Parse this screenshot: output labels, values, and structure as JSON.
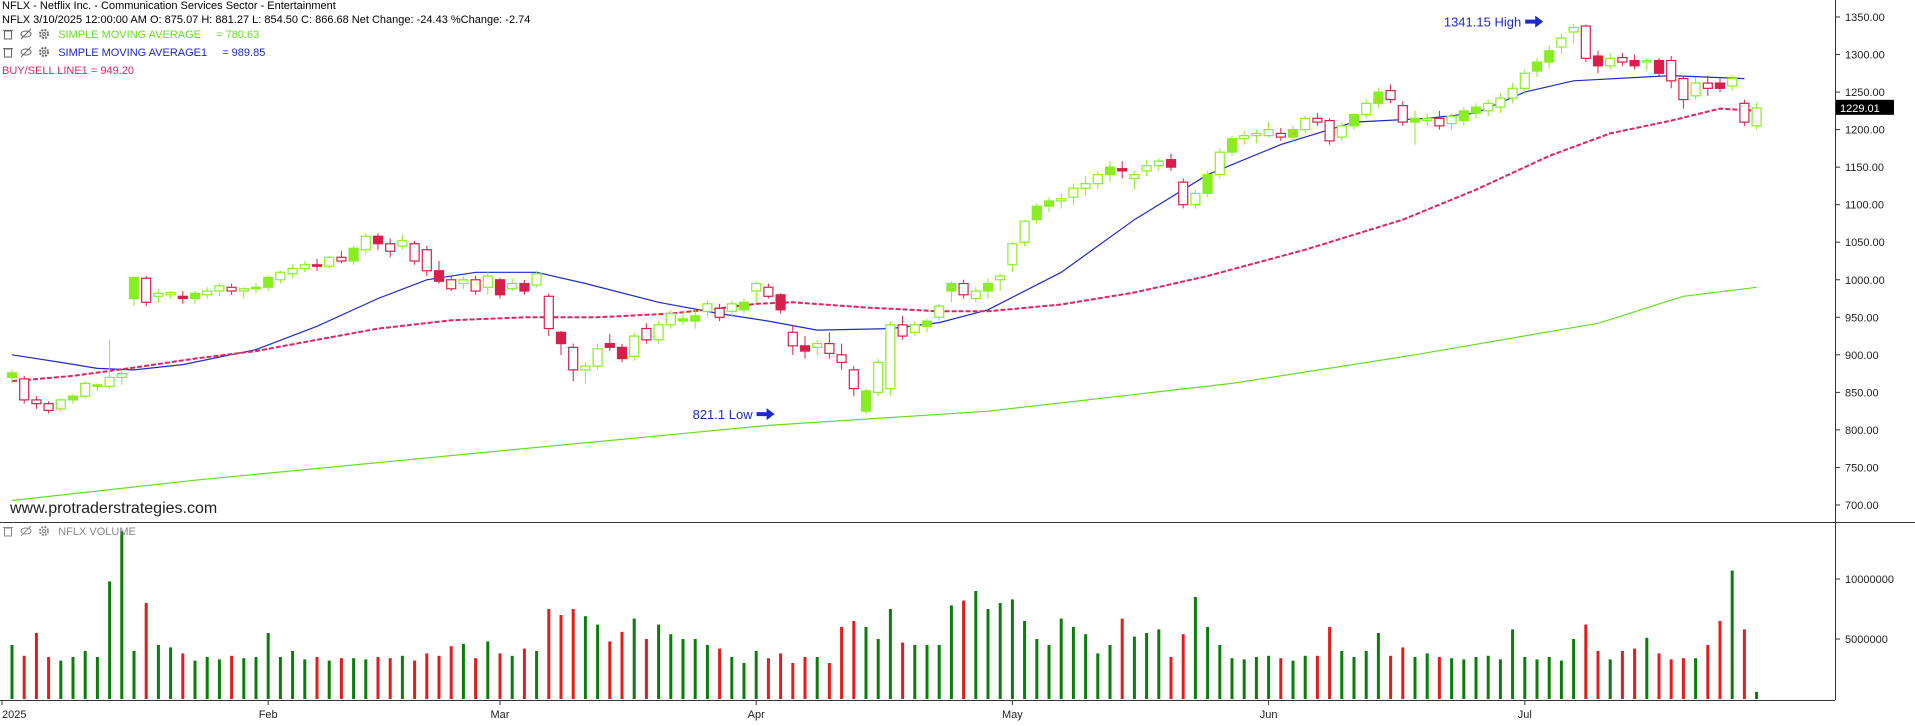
{
  "header": {
    "title": "NFLX - Netflix Inc. - Communication Services Sector - Entertainment",
    "ohlc": "NFLX 3/10/2025 12:00:00 AM O: 875.07 H: 881.27 L: 854.50 C: 866.68 Net Change: -24.43  %Change: -2.74"
  },
  "indicators": [
    {
      "label": "SIMPLE MOVING AVERAGE",
      "value": "= 780.63",
      "color": "#66dd22"
    },
    {
      "label": "SIMPLE MOVING AVERAGE1",
      "value": "= 989.85",
      "color": "#1f28c8"
    },
    {
      "label": "BUY/SELL LINE1 = 949.20",
      "value": "",
      "color": "#e0245e"
    }
  ],
  "watermark": "www.protraderstrategies.com",
  "volume_label": "NFLX VOLUME",
  "colors": {
    "up": "#88ee22",
    "down": "#d81e4a",
    "sma_long": "#66dd22",
    "sma_short": "#1f28c8",
    "buysell": "#e0245e",
    "vol_up": "#0a7d0a",
    "vol_down": "#e01e1e"
  },
  "chart_data": {
    "type": "candlestick",
    "price_axis": {
      "ticks": [
        700,
        750,
        800,
        850,
        900,
        950,
        1000,
        1050,
        1100,
        1150,
        1200,
        1250,
        1300,
        1350
      ],
      "ylim": [
        670,
        1365
      ]
    },
    "volume_axis": {
      "ticks": [
        5000000,
        10000000
      ],
      "tick_labels": [
        "5000000",
        "10000000"
      ],
      "ylim": [
        0,
        15000000
      ]
    },
    "x_labels": [
      {
        "label": "2025",
        "index": 0
      },
      {
        "label": "Feb",
        "index": 21
      },
      {
        "label": "Mar",
        "index": 40
      },
      {
        "label": "Apr",
        "index": 61
      },
      {
        "label": "May",
        "index": 82
      },
      {
        "label": "Jun",
        "index": 103
      },
      {
        "label": "Jul",
        "index": 124
      }
    ],
    "last_price_label": "1229.01",
    "last_price": 1229.01,
    "annotations": [
      {
        "text": "1341.15 High",
        "index": 126,
        "price": 1341.15,
        "side": "left-above"
      },
      {
        "text": "821.1 Low",
        "index": 63,
        "price": 821.1,
        "side": "left"
      }
    ],
    "candles": [
      [
        870,
        880,
        862,
        876,
        4.5
      ],
      [
        868,
        872,
        835,
        840,
        3.6
      ],
      [
        840,
        845,
        828,
        835,
        5.5
      ],
      [
        835,
        838,
        822,
        826,
        3.5
      ],
      [
        828,
        842,
        825,
        840,
        3.2
      ],
      [
        840,
        848,
        835,
        845,
        3.5
      ],
      [
        845,
        865,
        842,
        862,
        4.0
      ],
      [
        858,
        862,
        852,
        860,
        3.5
      ],
      [
        858,
        920,
        855,
        870,
        9.8
      ],
      [
        870,
        880,
        860,
        875,
        14.0
      ],
      [
        975,
        1005,
        965,
        1003,
        4.0
      ],
      [
        1002,
        1005,
        965,
        970,
        8.0
      ],
      [
        978,
        988,
        970,
        982,
        4.5
      ],
      [
        980,
        985,
        975,
        983,
        4.3
      ],
      [
        978,
        985,
        968,
        975,
        3.8
      ],
      [
        975,
        985,
        968,
        982,
        3.2
      ],
      [
        980,
        990,
        975,
        985,
        3.5
      ],
      [
        985,
        995,
        978,
        992,
        3.3
      ],
      [
        990,
        995,
        980,
        985,
        3.6
      ],
      [
        985,
        990,
        975,
        988,
        3.4
      ],
      [
        988,
        995,
        982,
        990,
        3.5
      ],
      [
        990,
        1005,
        985,
        1003,
        5.5
      ],
      [
        1000,
        1012,
        995,
        1010,
        3.5
      ],
      [
        1008,
        1020,
        1002,
        1015,
        4.0
      ],
      [
        1015,
        1025,
        1010,
        1020,
        3.3
      ],
      [
        1020,
        1028,
        1012,
        1018,
        3.5
      ],
      [
        1018,
        1032,
        1015,
        1030,
        3.2
      ],
      [
        1030,
        1038,
        1022,
        1025,
        3.4
      ],
      [
        1025,
        1045,
        1020,
        1042,
        3.4
      ],
      [
        1040,
        1062,
        1035,
        1058,
        3.3
      ],
      [
        1058,
        1062,
        1040,
        1048,
        3.5
      ],
      [
        1048,
        1055,
        1030,
        1038,
        3.4
      ],
      [
        1045,
        1060,
        1040,
        1052,
        3.6
      ],
      [
        1048,
        1052,
        1020,
        1025,
        3.2
      ],
      [
        1040,
        1045,
        1005,
        1012,
        3.8
      ],
      [
        1012,
        1025,
        995,
        998,
        3.6
      ],
      [
        1000,
        1005,
        985,
        988,
        4.4
      ],
      [
        995,
        1005,
        988,
        1000,
        4.6
      ],
      [
        1000,
        1005,
        980,
        985,
        3.4
      ],
      [
        990,
        1010,
        980,
        1005,
        4.8
      ],
      [
        1000,
        1002,
        975,
        980,
        3.8
      ],
      [
        988,
        1002,
        985,
        995,
        3.6
      ],
      [
        995,
        1000,
        980,
        985,
        4.2
      ],
      [
        993,
        1012,
        990,
        1008,
        4.0
      ],
      [
        978,
        982,
        925,
        935,
        7.5
      ],
      [
        930,
        932,
        900,
        915,
        7.0
      ],
      [
        910,
        915,
        865,
        880,
        7.5
      ],
      [
        880,
        890,
        862,
        885,
        6.9
      ],
      [
        885,
        915,
        880,
        908,
        6.2
      ],
      [
        915,
        928,
        905,
        910,
        4.8
      ],
      [
        910,
        915,
        890,
        895,
        5.6
      ],
      [
        898,
        930,
        892,
        925,
        6.7
      ],
      [
        935,
        942,
        915,
        920,
        5.0
      ],
      [
        920,
        945,
        915,
        940,
        6.2
      ],
      [
        940,
        960,
        935,
        955,
        5.4
      ],
      [
        945,
        958,
        940,
        948,
        5.0
      ],
      [
        945,
        960,
        935,
        952,
        5.0
      ],
      [
        958,
        972,
        950,
        968,
        4.5
      ],
      [
        962,
        968,
        945,
        950,
        4.2
      ],
      [
        958,
        972,
        950,
        968,
        3.5
      ],
      [
        960,
        975,
        955,
        970,
        3.0
      ],
      [
        985,
        998,
        970,
        995,
        4.0
      ],
      [
        990,
        995,
        975,
        978,
        3.4
      ],
      [
        980,
        982,
        955,
        960,
        3.8
      ],
      [
        930,
        940,
        900,
        912,
        3.0
      ],
      [
        912,
        925,
        895,
        905,
        3.5
      ],
      [
        910,
        920,
        900,
        915,
        3.5
      ],
      [
        915,
        930,
        895,
        902,
        3.0
      ],
      [
        900,
        915,
        880,
        890,
        6.0
      ],
      [
        880,
        885,
        845,
        855,
        6.5
      ],
      [
        825,
        855,
        821,
        852,
        6.0
      ],
      [
        850,
        895,
        845,
        890,
        5.0
      ],
      [
        855,
        945,
        845,
        940,
        7.5
      ],
      [
        940,
        952,
        920,
        925,
        4.7
      ],
      [
        930,
        945,
        925,
        940,
        4.5
      ],
      [
        938,
        948,
        930,
        945,
        4.5
      ],
      [
        950,
        968,
        945,
        965,
        4.5
      ],
      [
        985,
        998,
        970,
        995,
        7.8
      ],
      [
        995,
        1000,
        975,
        980,
        8.2
      ],
      [
        975,
        990,
        970,
        985,
        9.0
      ],
      [
        985,
        1002,
        975,
        995,
        7.5
      ],
      [
        1000,
        1008,
        985,
        1005,
        8.0
      ],
      [
        1020,
        1050,
        1010,
        1048,
        8.3
      ],
      [
        1050,
        1080,
        1045,
        1078,
        6.5
      ],
      [
        1080,
        1102,
        1075,
        1098,
        5.0
      ],
      [
        1098,
        1110,
        1090,
        1105,
        4.5
      ],
      [
        1105,
        1115,
        1095,
        1108,
        6.7
      ],
      [
        1110,
        1128,
        1100,
        1122,
        6.0
      ],
      [
        1122,
        1138,
        1112,
        1128,
        5.4
      ],
      [
        1128,
        1145,
        1120,
        1140,
        3.8
      ],
      [
        1140,
        1158,
        1130,
        1150,
        4.5
      ],
      [
        1148,
        1158,
        1135,
        1145,
        6.7
      ],
      [
        1135,
        1145,
        1120,
        1140,
        5.2
      ],
      [
        1145,
        1160,
        1138,
        1152,
        5.5
      ],
      [
        1152,
        1162,
        1145,
        1158,
        5.8
      ],
      [
        1160,
        1168,
        1145,
        1150,
        3.5
      ],
      [
        1130,
        1135,
        1095,
        1100,
        5.4
      ],
      [
        1100,
        1120,
        1095,
        1115,
        8.5
      ],
      [
        1115,
        1145,
        1110,
        1140,
        6.0
      ],
      [
        1140,
        1175,
        1135,
        1170,
        4.5
      ],
      [
        1170,
        1192,
        1165,
        1188,
        3.4
      ],
      [
        1188,
        1198,
        1180,
        1192,
        3.3
      ],
      [
        1192,
        1200,
        1182,
        1195,
        3.5
      ],
      [
        1192,
        1210,
        1190,
        1200,
        3.6
      ],
      [
        1195,
        1202,
        1185,
        1190,
        3.4
      ],
      [
        1190,
        1205,
        1185,
        1200,
        3.2
      ],
      [
        1200,
        1218,
        1195,
        1215,
        3.6
      ],
      [
        1215,
        1222,
        1205,
        1210,
        3.6
      ],
      [
        1212,
        1215,
        1180,
        1185,
        6.0
      ],
      [
        1190,
        1210,
        1185,
        1205,
        4.0
      ],
      [
        1205,
        1222,
        1200,
        1220,
        3.5
      ],
      [
        1220,
        1240,
        1215,
        1235,
        4.0
      ],
      [
        1235,
        1255,
        1228,
        1250,
        5.5
      ],
      [
        1252,
        1260,
        1235,
        1240,
        3.6
      ],
      [
        1232,
        1238,
        1205,
        1210,
        4.3
      ],
      [
        1210,
        1225,
        1180,
        1215,
        3.5
      ],
      [
        1212,
        1222,
        1205,
        1215,
        3.8
      ],
      [
        1215,
        1225,
        1200,
        1205,
        3.5
      ],
      [
        1208,
        1222,
        1200,
        1218,
        3.4
      ],
      [
        1212,
        1230,
        1205,
        1225,
        3.3
      ],
      [
        1222,
        1235,
        1215,
        1230,
        3.5
      ],
      [
        1225,
        1240,
        1218,
        1235,
        3.6
      ],
      [
        1230,
        1248,
        1222,
        1242,
        3.3
      ],
      [
        1242,
        1262,
        1235,
        1255,
        5.8
      ],
      [
        1255,
        1280,
        1248,
        1275,
        3.5
      ],
      [
        1278,
        1295,
        1270,
        1290,
        3.3
      ],
      [
        1290,
        1312,
        1282,
        1305,
        3.5
      ],
      [
        1310,
        1328,
        1300,
        1322,
        3.2
      ],
      [
        1330,
        1341,
        1315,
        1336,
        5.0
      ],
      [
        1338,
        1340,
        1290,
        1295,
        6.2
      ],
      [
        1298,
        1305,
        1275,
        1285,
        4.0
      ],
      [
        1285,
        1302,
        1280,
        1295,
        3.3
      ],
      [
        1296,
        1302,
        1285,
        1290,
        4.0
      ],
      [
        1292,
        1300,
        1280,
        1285,
        4.2
      ],
      [
        1290,
        1295,
        1278,
        1292,
        5.1
      ],
      [
        1292,
        1295,
        1270,
        1275,
        3.8
      ],
      [
        1292,
        1298,
        1255,
        1265,
        3.3
      ],
      [
        1268,
        1272,
        1228,
        1240,
        3.4
      ],
      [
        1245,
        1270,
        1240,
        1262,
        3.4
      ],
      [
        1262,
        1272,
        1245,
        1255,
        4.5
      ],
      [
        1262,
        1268,
        1250,
        1255,
        6.5
      ],
      [
        1258,
        1272,
        1252,
        1268,
        10.7
      ],
      [
        1235,
        1240,
        1205,
        1210,
        5.8
      ],
      [
        1205,
        1236,
        1200,
        1229,
        0.6
      ]
    ],
    "series": [
      {
        "name": "SIMPLE MOVING AVERAGE",
        "color": "#66dd22",
        "points": [
          [
            0,
            706
          ],
          [
            15,
            733
          ],
          [
            40,
            772
          ],
          [
            62,
            806
          ],
          [
            80,
            825
          ],
          [
            100,
            862
          ],
          [
            115,
            900
          ],
          [
            130,
            942
          ],
          [
            137,
            978
          ],
          [
            143,
            990
          ]
        ]
      },
      {
        "name": "SIMPLE MOVING AVERAGE1",
        "color": "#1f28c8",
        "points": [
          [
            0,
            900
          ],
          [
            4,
            890
          ],
          [
            7,
            882
          ],
          [
            10,
            880
          ],
          [
            14,
            887
          ],
          [
            20,
            907
          ],
          [
            25,
            938
          ],
          [
            30,
            975
          ],
          [
            34,
            1000
          ],
          [
            38,
            1010
          ],
          [
            43,
            1010
          ],
          [
            47,
            995
          ],
          [
            53,
            970
          ],
          [
            58,
            955
          ],
          [
            62,
            945
          ],
          [
            66,
            933
          ],
          [
            72,
            935
          ],
          [
            76,
            943
          ],
          [
            80,
            960
          ],
          [
            86,
            1010
          ],
          [
            92,
            1080
          ],
          [
            98,
            1140
          ],
          [
            104,
            1180
          ],
          [
            110,
            1210
          ],
          [
            116,
            1215
          ],
          [
            120,
            1222
          ],
          [
            124,
            1250
          ],
          [
            128,
            1265
          ],
          [
            136,
            1272
          ],
          [
            142,
            1268
          ]
        ]
      },
      {
        "name": "BUY/SELL LINE1",
        "color": "#e0245e",
        "points": [
          [
            0,
            865
          ],
          [
            5,
            872
          ],
          [
            10,
            883
          ],
          [
            15,
            895
          ],
          [
            20,
            905
          ],
          [
            25,
            920
          ],
          [
            30,
            935
          ],
          [
            36,
            946
          ],
          [
            42,
            950
          ],
          [
            48,
            950
          ],
          [
            54,
            955
          ],
          [
            58,
            962
          ],
          [
            61,
            968
          ],
          [
            64,
            970
          ],
          [
            70,
            963
          ],
          [
            76,
            958
          ],
          [
            80,
            958
          ],
          [
            86,
            967
          ],
          [
            92,
            983
          ],
          [
            98,
            1005
          ],
          [
            106,
            1040
          ],
          [
            114,
            1080
          ],
          [
            120,
            1120
          ],
          [
            126,
            1165
          ],
          [
            131,
            1195
          ],
          [
            136,
            1212
          ],
          [
            140,
            1228
          ],
          [
            143,
            1225
          ]
        ]
      }
    ]
  }
}
